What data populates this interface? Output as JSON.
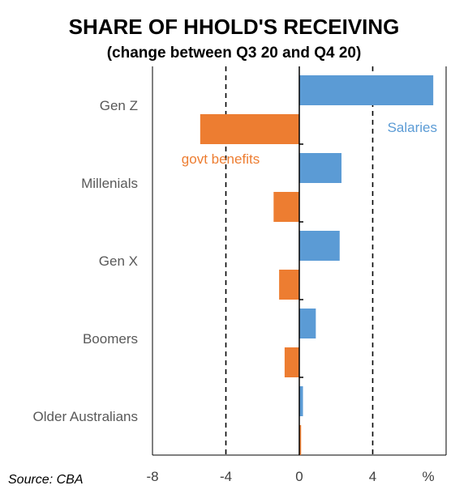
{
  "title": "SHARE OF HHOLD'S RECEIVING",
  "subtitle": "(change between Q3 20 and Q4 20)",
  "source": "Source: CBA",
  "chart_data": {
    "type": "bar",
    "orientation": "horizontal",
    "title": "SHARE OF HHOLD'S RECEIVING",
    "subtitle": "(change between Q3 20 and Q4 20)",
    "categories": [
      "Gen Z",
      "Millenials",
      "Gen X",
      "Boomers",
      "Older Australians"
    ],
    "series": [
      {
        "name": "Salaries",
        "color": "#5b9bd5",
        "values": [
          7.3,
          2.3,
          2.2,
          0.9,
          0.2
        ]
      },
      {
        "name": "govt benefits",
        "color": "#ed7d31",
        "values": [
          -5.4,
          -1.4,
          -1.1,
          -0.8,
          0.1
        ]
      }
    ],
    "xlim": [
      -8,
      8
    ],
    "xticks": [
      "-8",
      "-4",
      "0",
      "4"
    ],
    "xunit_label": "%",
    "reference_lines": [
      -4,
      4
    ],
    "grid": false,
    "legend": "inline labels"
  }
}
